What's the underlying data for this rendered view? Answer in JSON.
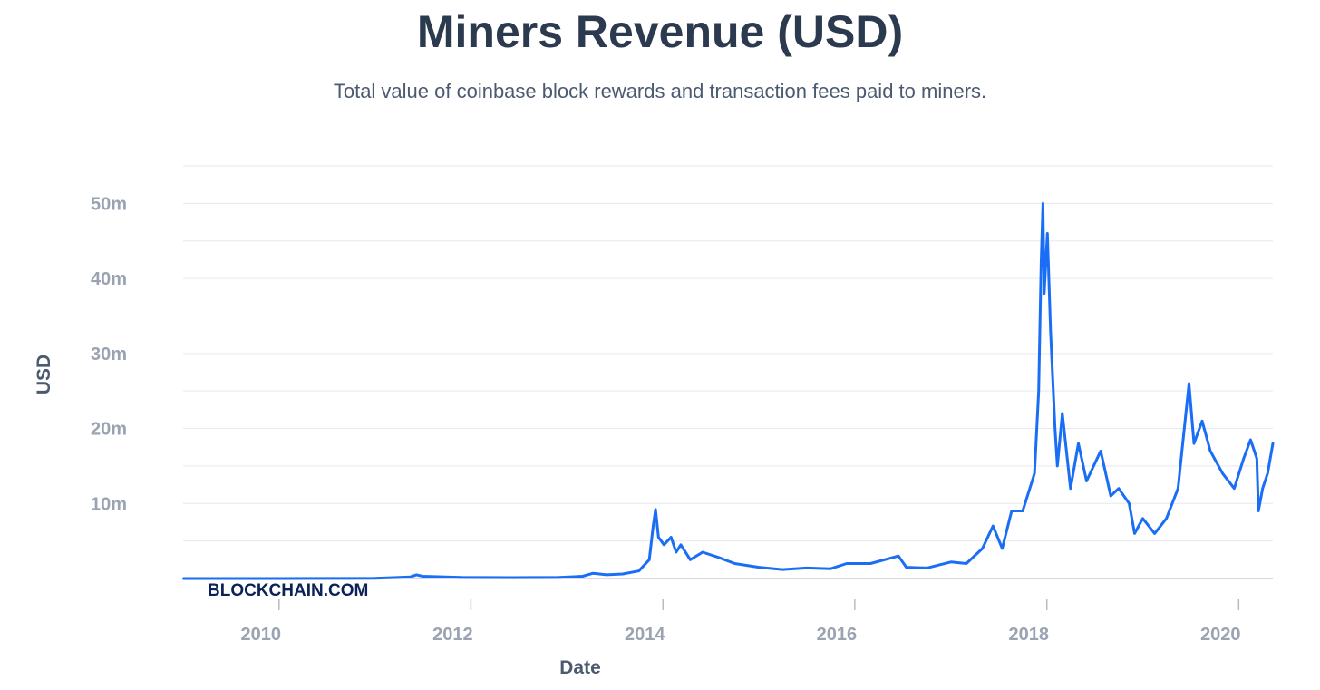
{
  "header": {
    "title": "Miners Revenue (USD)",
    "subtitle": "Total value of coinbase block rewards and transaction fees paid to miners."
  },
  "watermark": "BLOCKCHAIN.COM",
  "colors": {
    "line": "#1a6ef5",
    "grid": "#e6e9ee",
    "title": "#2c3a50",
    "ticks": "#9aa3b2",
    "brand": "#0b2259"
  },
  "chart_data": {
    "type": "line",
    "title": "Miners Revenue (USD)",
    "subtitle": "Total value of coinbase block rewards and transaction fees paid to miners.",
    "xlabel": "Date",
    "ylabel": "USD",
    "xlim": [
      "2009-01-01",
      "2020-05-10"
    ],
    "ylim": [
      0,
      55000000
    ],
    "yticks": [
      10000000,
      20000000,
      30000000,
      40000000,
      50000000
    ],
    "ytick_labels": [
      "10m",
      "20m",
      "30m",
      "40m",
      "50m"
    ],
    "xticks": [
      "2010-01-01",
      "2012-01-01",
      "2014-01-01",
      "2016-01-01",
      "2018-01-01",
      "2020-01-01"
    ],
    "xtick_labels": [
      "2010",
      "2012",
      "2014",
      "2016",
      "2018",
      "2020"
    ],
    "grid": true,
    "series": [
      {
        "values": [
          [
            "2009-01-03",
            0
          ],
          [
            "2010-01-01",
            0
          ],
          [
            "2010-07-01",
            10000
          ],
          [
            "2011-01-01",
            30000
          ],
          [
            "2011-05-15",
            200000
          ],
          [
            "2011-06-08",
            500000
          ],
          [
            "2011-07-01",
            300000
          ],
          [
            "2011-12-01",
            150000
          ],
          [
            "2012-06-01",
            120000
          ],
          [
            "2012-12-01",
            150000
          ],
          [
            "2013-03-01",
            300000
          ],
          [
            "2013-04-10",
            700000
          ],
          [
            "2013-06-01",
            500000
          ],
          [
            "2013-08-01",
            600000
          ],
          [
            "2013-10-01",
            1000000
          ],
          [
            "2013-11-10",
            2500000
          ],
          [
            "2013-11-25",
            7000000
          ],
          [
            "2013-12-04",
            9200000
          ],
          [
            "2013-12-15",
            5500000
          ],
          [
            "2014-01-05",
            4500000
          ],
          [
            "2014-02-01",
            5500000
          ],
          [
            "2014-02-20",
            3500000
          ],
          [
            "2014-03-10",
            4500000
          ],
          [
            "2014-04-15",
            2500000
          ],
          [
            "2014-06-01",
            3500000
          ],
          [
            "2014-08-01",
            2800000
          ],
          [
            "2014-10-01",
            2000000
          ],
          [
            "2015-01-01",
            1500000
          ],
          [
            "2015-04-01",
            1200000
          ],
          [
            "2015-07-01",
            1400000
          ],
          [
            "2015-10-01",
            1300000
          ],
          [
            "2015-12-01",
            2000000
          ],
          [
            "2016-03-01",
            2000000
          ],
          [
            "2016-06-15",
            3000000
          ],
          [
            "2016-07-15",
            1500000
          ],
          [
            "2016-10-01",
            1400000
          ],
          [
            "2017-01-01",
            2200000
          ],
          [
            "2017-03-01",
            2000000
          ],
          [
            "2017-05-01",
            4000000
          ],
          [
            "2017-06-10",
            7000000
          ],
          [
            "2017-07-15",
            4000000
          ],
          [
            "2017-08-20",
            9000000
          ],
          [
            "2017-10-01",
            9000000
          ],
          [
            "2017-11-15",
            14000000
          ],
          [
            "2017-12-01",
            25000000
          ],
          [
            "2017-12-10",
            42000000
          ],
          [
            "2017-12-17",
            50000000
          ],
          [
            "2017-12-22",
            38000000
          ],
          [
            "2018-01-03",
            46000000
          ],
          [
            "2018-01-15",
            33000000
          ],
          [
            "2018-02-01",
            20000000
          ],
          [
            "2018-02-10",
            15000000
          ],
          [
            "2018-03-01",
            22000000
          ],
          [
            "2018-04-01",
            12000000
          ],
          [
            "2018-05-01",
            18000000
          ],
          [
            "2018-06-01",
            13000000
          ],
          [
            "2018-07-25",
            17000000
          ],
          [
            "2018-09-01",
            11000000
          ],
          [
            "2018-10-01",
            12000000
          ],
          [
            "2018-11-10",
            10000000
          ],
          [
            "2018-12-01",
            6000000
          ],
          [
            "2019-01-01",
            8000000
          ],
          [
            "2019-02-15",
            6000000
          ],
          [
            "2019-04-01",
            8000000
          ],
          [
            "2019-05-15",
            12000000
          ],
          [
            "2019-06-26",
            26000000
          ],
          [
            "2019-07-15",
            18000000
          ],
          [
            "2019-08-15",
            21000000
          ],
          [
            "2019-09-15",
            17000000
          ],
          [
            "2019-11-01",
            14000000
          ],
          [
            "2019-12-15",
            12000000
          ],
          [
            "2020-01-20",
            16000000
          ],
          [
            "2020-02-15",
            18500000
          ],
          [
            "2020-03-10",
            16000000
          ],
          [
            "2020-03-16",
            9000000
          ],
          [
            "2020-04-01",
            12000000
          ],
          [
            "2020-04-20",
            14000000
          ],
          [
            "2020-05-10",
            18000000
          ]
        ]
      }
    ]
  }
}
